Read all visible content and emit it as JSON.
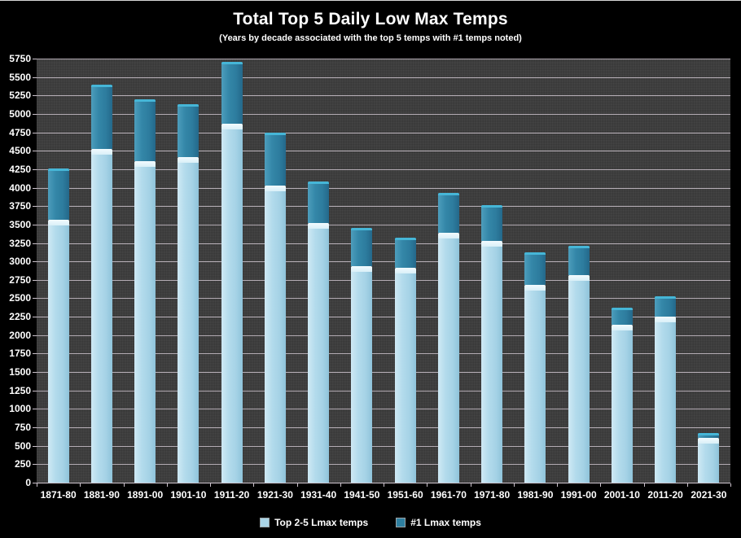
{
  "header": {
    "title": "Total Top 5 Daily Low Max Temps",
    "subtitle": "(Years by decade associated with the top 5 temps with #1 temps noted)"
  },
  "colors": {
    "background": "#000000",
    "plot_background": "#3b3b3b",
    "gridline": "#cbc2cb",
    "text": "#ffffff",
    "series_light": "#a9d4e6",
    "series_dark": "#2e7fa0",
    "dark_cap_highlight": "#46b6d7"
  },
  "legend": {
    "items": [
      {
        "label": "Top 2-5 Lmax temps",
        "color": "#a9d4e6"
      },
      {
        "label": "#1 Lmax temps",
        "color": "#2e7fa0"
      }
    ]
  },
  "chart_data": {
    "type": "bar",
    "stacked": true,
    "title": "Total Top 5 Daily Low Max Temps",
    "subtitle": "(Years by decade associated with the top 5 temps with #1 temps noted)",
    "categories": [
      "1871-80",
      "1881-90",
      "1891-00",
      "1901-10",
      "1911-20",
      "1921-30",
      "1931-40",
      "1941-50",
      "1951-60",
      "1961-70",
      "1971-80",
      "1981-90",
      "1991-00",
      "2001-10",
      "2011-20",
      "2021-30"
    ],
    "series": [
      {
        "name": "Top 2-5 Lmax temps",
        "color": "#a9d4e6",
        "values": [
          3560,
          4530,
          4360,
          4420,
          4870,
          4030,
          3520,
          2940,
          2910,
          3390,
          3280,
          2680,
          2810,
          2140,
          2250,
          610
        ]
      },
      {
        "name": "#1 Lmax temps",
        "color": "#2e7fa0",
        "values": [
          700,
          870,
          840,
          710,
          840,
          720,
          560,
          510,
          410,
          540,
          480,
          440,
          405,
          230,
          280,
          60
        ]
      }
    ],
    "stack_totals": [
      4260,
      5400,
      5200,
      5130,
      5710,
      4750,
      4080,
      3450,
      3320,
      3930,
      3760,
      3120,
      3215,
      2370,
      2530,
      670
    ],
    "xlabel": "",
    "ylabel": "",
    "ylim": [
      0,
      5750
    ],
    "ytick_step": 250,
    "grid": true,
    "legend_position": "bottom"
  }
}
